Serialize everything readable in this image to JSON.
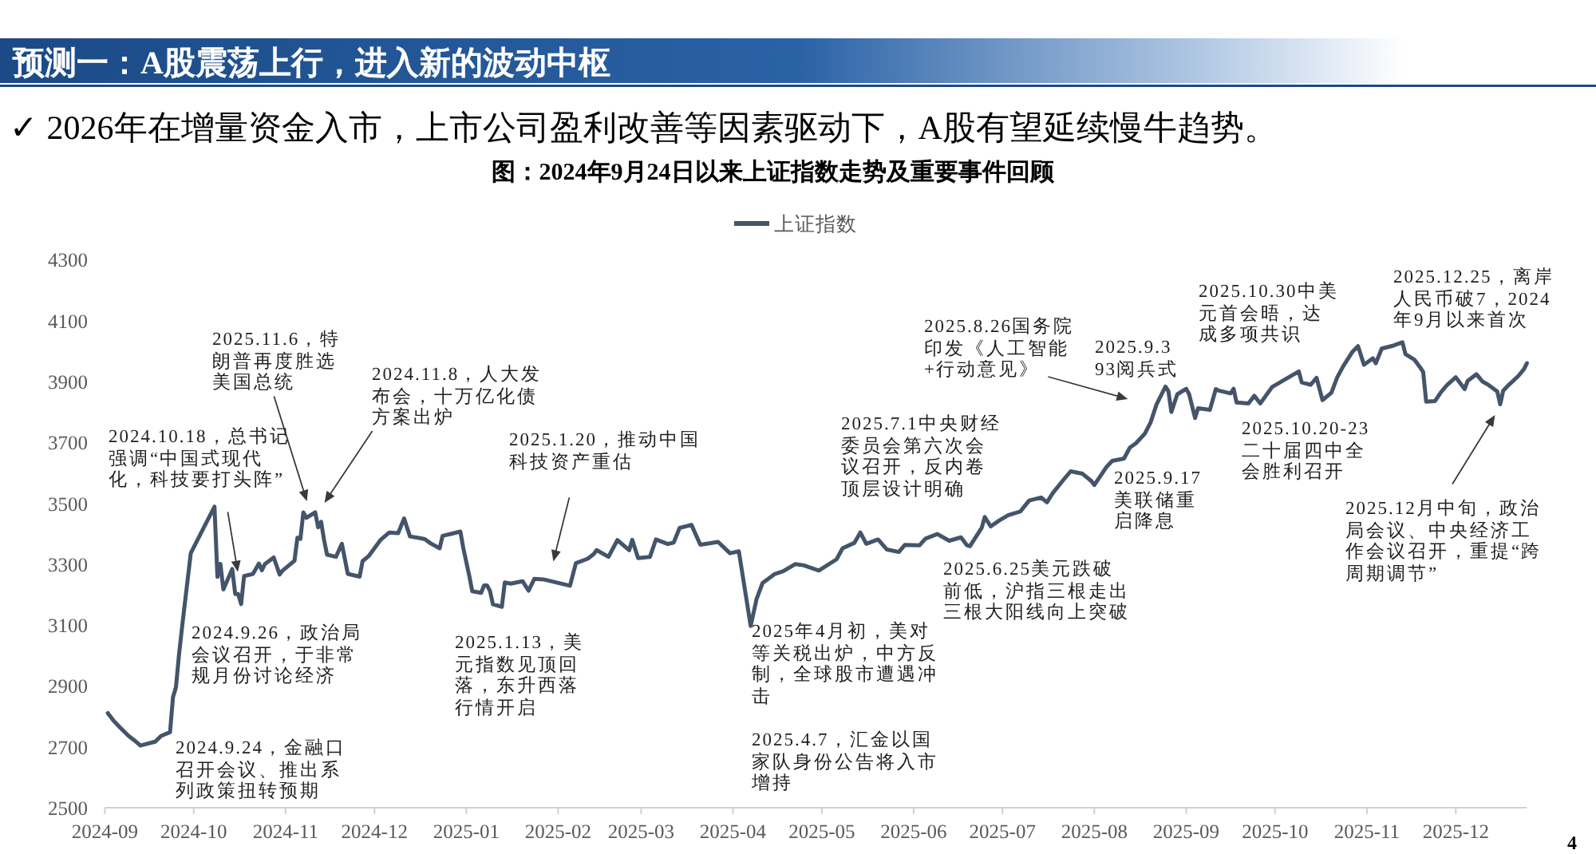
{
  "chart_data": {
    "type": "line",
    "title": "预测一：A股震荡上行，进入新的波动中枢",
    "subtitle": "✓ 2026年在增量资金入市，上市公司盈利改善等因素驱动下，A股有望延续慢牛趋势。",
    "x": [
      "2024-09-02",
      "2024-09-04",
      "2024-09-06",
      "2024-09-09",
      "2024-09-11",
      "2024-09-13",
      "2024-09-18",
      "2024-09-20",
      "2024-09-23",
      "2024-09-24",
      "2024-09-25",
      "2024-09-26",
      "2024-09-27",
      "2024-09-30",
      "2024-10-08",
      "2024-10-09",
      "2024-10-10",
      "2024-10-11",
      "2024-10-14",
      "2024-10-15",
      "2024-10-16",
      "2024-10-17",
      "2024-10-18",
      "2024-10-21",
      "2024-10-23",
      "2024-10-24",
      "2024-10-25",
      "2024-10-28",
      "2024-10-30",
      "2024-10-31",
      "2024-11-04",
      "2024-11-05",
      "2024-11-06",
      "2024-11-07",
      "2024-11-08",
      "2024-11-11",
      "2024-11-12",
      "2024-11-13",
      "2024-11-14",
      "2024-11-15",
      "2024-11-18",
      "2024-11-20",
      "2024-11-22",
      "2024-11-26",
      "2024-11-27",
      "2024-11-29",
      "2024-12-03",
      "2024-12-06",
      "2024-12-09",
      "2024-12-11",
      "2024-12-13",
      "2024-12-16",
      "2024-12-18",
      "2024-12-20",
      "2024-12-23",
      "2024-12-24",
      "2024-12-27",
      "2024-12-30",
      "2024-12-31",
      "2025-01-02",
      "2025-01-03",
      "2025-01-06",
      "2025-01-07",
      "2025-01-08",
      "2025-01-09",
      "2025-01-10",
      "2025-01-13",
      "2025-01-14",
      "2025-01-16",
      "2025-01-20",
      "2025-01-22",
      "2025-01-24",
      "2025-01-27",
      "2025-02-05",
      "2025-02-07",
      "2025-02-11",
      "2025-02-13",
      "2025-02-14",
      "2025-02-18",
      "2025-02-21",
      "2025-02-25",
      "2025-02-26",
      "2025-02-28",
      "2025-03-04",
      "2025-03-06",
      "2025-03-10",
      "2025-03-12",
      "2025-03-14",
      "2025-03-18",
      "2025-03-21",
      "2025-03-27",
      "2025-03-31",
      "2025-04-03",
      "2025-04-07",
      "2025-04-09",
      "2025-04-11",
      "2025-04-15",
      "2025-04-18",
      "2025-04-22",
      "2025-04-25",
      "2025-04-30",
      "2025-05-06",
      "2025-05-08",
      "2025-05-12",
      "2025-05-14",
      "2025-05-16",
      "2025-05-20",
      "2025-05-23",
      "2025-05-27",
      "2025-05-29",
      "2025-06-03",
      "2025-06-05",
      "2025-06-09",
      "2025-06-13",
      "2025-06-17",
      "2025-06-19",
      "2025-06-20",
      "2025-06-24",
      "2025-06-25",
      "2025-06-27",
      "2025-06-30",
      "2025-07-03",
      "2025-07-07",
      "2025-07-10",
      "2025-07-14",
      "2025-07-16",
      "2025-07-18",
      "2025-07-22",
      "2025-07-24",
      "2025-07-28",
      "2025-07-31",
      "2025-08-01",
      "2025-08-05",
      "2025-08-07",
      "2025-08-11",
      "2025-08-13",
      "2025-08-15",
      "2025-08-18",
      "2025-08-20",
      "2025-08-22",
      "2025-08-25",
      "2025-08-26",
      "2025-08-27",
      "2025-08-29",
      "2025-09-01",
      "2025-09-02",
      "2025-09-04",
      "2025-09-05",
      "2025-09-09",
      "2025-09-11",
      "2025-09-12",
      "2025-09-16",
      "2025-09-17",
      "2025-09-18",
      "2025-09-22",
      "2025-09-24",
      "2025-09-26",
      "2025-09-30",
      "2025-10-09",
      "2025-10-10",
      "2025-10-13",
      "2025-10-15",
      "2025-10-17",
      "2025-10-20",
      "2025-10-22",
      "2025-10-24",
      "2025-10-27",
      "2025-10-29",
      "2025-10-31",
      "2025-11-03",
      "2025-11-04",
      "2025-11-06",
      "2025-11-10",
      "2025-11-13",
      "2025-11-14",
      "2025-11-17",
      "2025-11-19",
      "2025-11-20",
      "2025-11-21",
      "2025-11-24",
      "2025-11-26",
      "2025-11-28",
      "2025-12-01",
      "2025-12-04",
      "2025-12-05",
      "2025-12-08",
      "2025-12-10",
      "2025-12-12",
      "2025-12-15",
      "2025-12-16",
      "2025-12-17",
      "2025-12-19",
      "2025-12-22",
      "2025-12-24",
      "2025-12-25"
    ],
    "series": [
      {
        "name": "上证指数",
        "color": "#44546a",
        "values": [
          2811,
          2785,
          2765,
          2736,
          2721,
          2704,
          2717,
          2736,
          2748,
          2863,
          2896,
          3000,
          3088,
          3336,
          3489,
          3258,
          3301,
          3217,
          3284,
          3202,
          3202,
          3169,
          3261,
          3268,
          3302,
          3280,
          3300,
          3322,
          3266,
          3279,
          3311,
          3387,
          3383,
          3470,
          3452,
          3470,
          3421,
          3439,
          3379,
          3331,
          3324,
          3367,
          3268,
          3259,
          3310,
          3326,
          3379,
          3404,
          3402,
          3450,
          3391,
          3386,
          3382,
          3368,
          3352,
          3393,
          3400,
          3407,
          3352,
          3262,
          3211,
          3206,
          3230,
          3230,
          3212,
          3168,
          3160,
          3240,
          3236,
          3244,
          3213,
          3252,
          3250,
          3229,
          3303,
          3318,
          3333,
          3346,
          3324,
          3379,
          3346,
          3380,
          3320,
          3324,
          3381,
          3366,
          3371,
          3419,
          3429,
          3364,
          3373,
          3336,
          3342,
          3097,
          3186,
          3238,
          3267,
          3277,
          3300,
          3296,
          3279,
          3316,
          3352,
          3370,
          3404,
          3367,
          3381,
          3348,
          3340,
          3363,
          3362,
          3384,
          3399,
          3377,
          3388,
          3362,
          3359,
          3420,
          3455,
          3424,
          3444,
          3461,
          3473,
          3509,
          3519,
          3503,
          3534,
          3582,
          3605,
          3597,
          3573,
          3560,
          3618,
          3639,
          3647,
          3683,
          3697,
          3728,
          3766,
          3825,
          3883,
          3868,
          3800,
          3858,
          3876,
          3858,
          3780,
          3812,
          3807,
          3875,
          3870,
          3861,
          3876,
          3831,
          3828,
          3853,
          3828,
          3882,
          3933,
          3897,
          3889,
          3912,
          3839,
          3863,
          3914,
          3950,
          3996,
          4016,
          3955,
          3976,
          3960,
          4008,
          4018,
          4029,
          3990,
          3972,
          3946,
          3931,
          3834,
          3836,
          3865,
          3888,
          3914,
          3875,
          3902,
          3924,
          3900,
          3889,
          3867,
          3825,
          3870,
          3890,
          3917,
          3940,
          3960
        ]
      }
    ],
    "xlim": [
      "2024-09-01",
      "2025-12-25"
    ],
    "xticks": [
      "2024-09",
      "2024-10",
      "2024-11",
      "2024-12",
      "2025-01",
      "2025-02",
      "2025-03",
      "2025-04",
      "2025-05",
      "2025-06",
      "2025-07",
      "2025-08",
      "2025-09",
      "2025-10",
      "2025-11",
      "2025-12"
    ],
    "ylim": [
      2500,
      4300
    ],
    "yticks": [
      2500,
      2700,
      2900,
      3100,
      3300,
      3500,
      3700,
      3900,
      4100,
      4300
    ],
    "legend": "top",
    "annotations": [
      "图：2024年9月24日以来上证指数走势及重要事件回顾",
      "2024.9.24，金融口召开会议、推出系列政策扭转预期",
      "2024.9.26，政治局会议召开，于非常规月份讨论经济",
      "2024.10.18，总书记强调“中国式现代化，科技要打头阵”",
      "2025.11.6，特朗普再度胜选美国总统",
      "2024.11.8，人大发布会，十万亿化债方案出炉",
      "2025.1.13，美元指数见顶回落，东升西落行情开启",
      "2025.1.20，推动中国科技资产重估",
      "2025年4月初，美对等关税出炉，中方反制，全球股市遭遇冲击",
      "2025.4.7，汇金以国家队身份公告将入市增持",
      "2025.6.25美元跌破前低，沪指三根走出三根大阳线向上突破",
      "2025.7.1中央财经委员会第六次会议召开，反内卷顶层设计明确",
      "2025.8.26国务院印发《人工智能+行动意见》",
      "2025.9.3 93阅兵式",
      "2025.9.17美联储重启降息",
      "2025.10.30中美元首会晤，达成多项共识",
      "2025.10.20-23二十届四中全会胜利召开",
      "2025.12.25，离岸人民币破7，2024年9月以来首次",
      "2025.12月中旬，政治局会议、中央经济工作会议召开，重提“跨周期调节”",
      "4"
    ]
  }
}
